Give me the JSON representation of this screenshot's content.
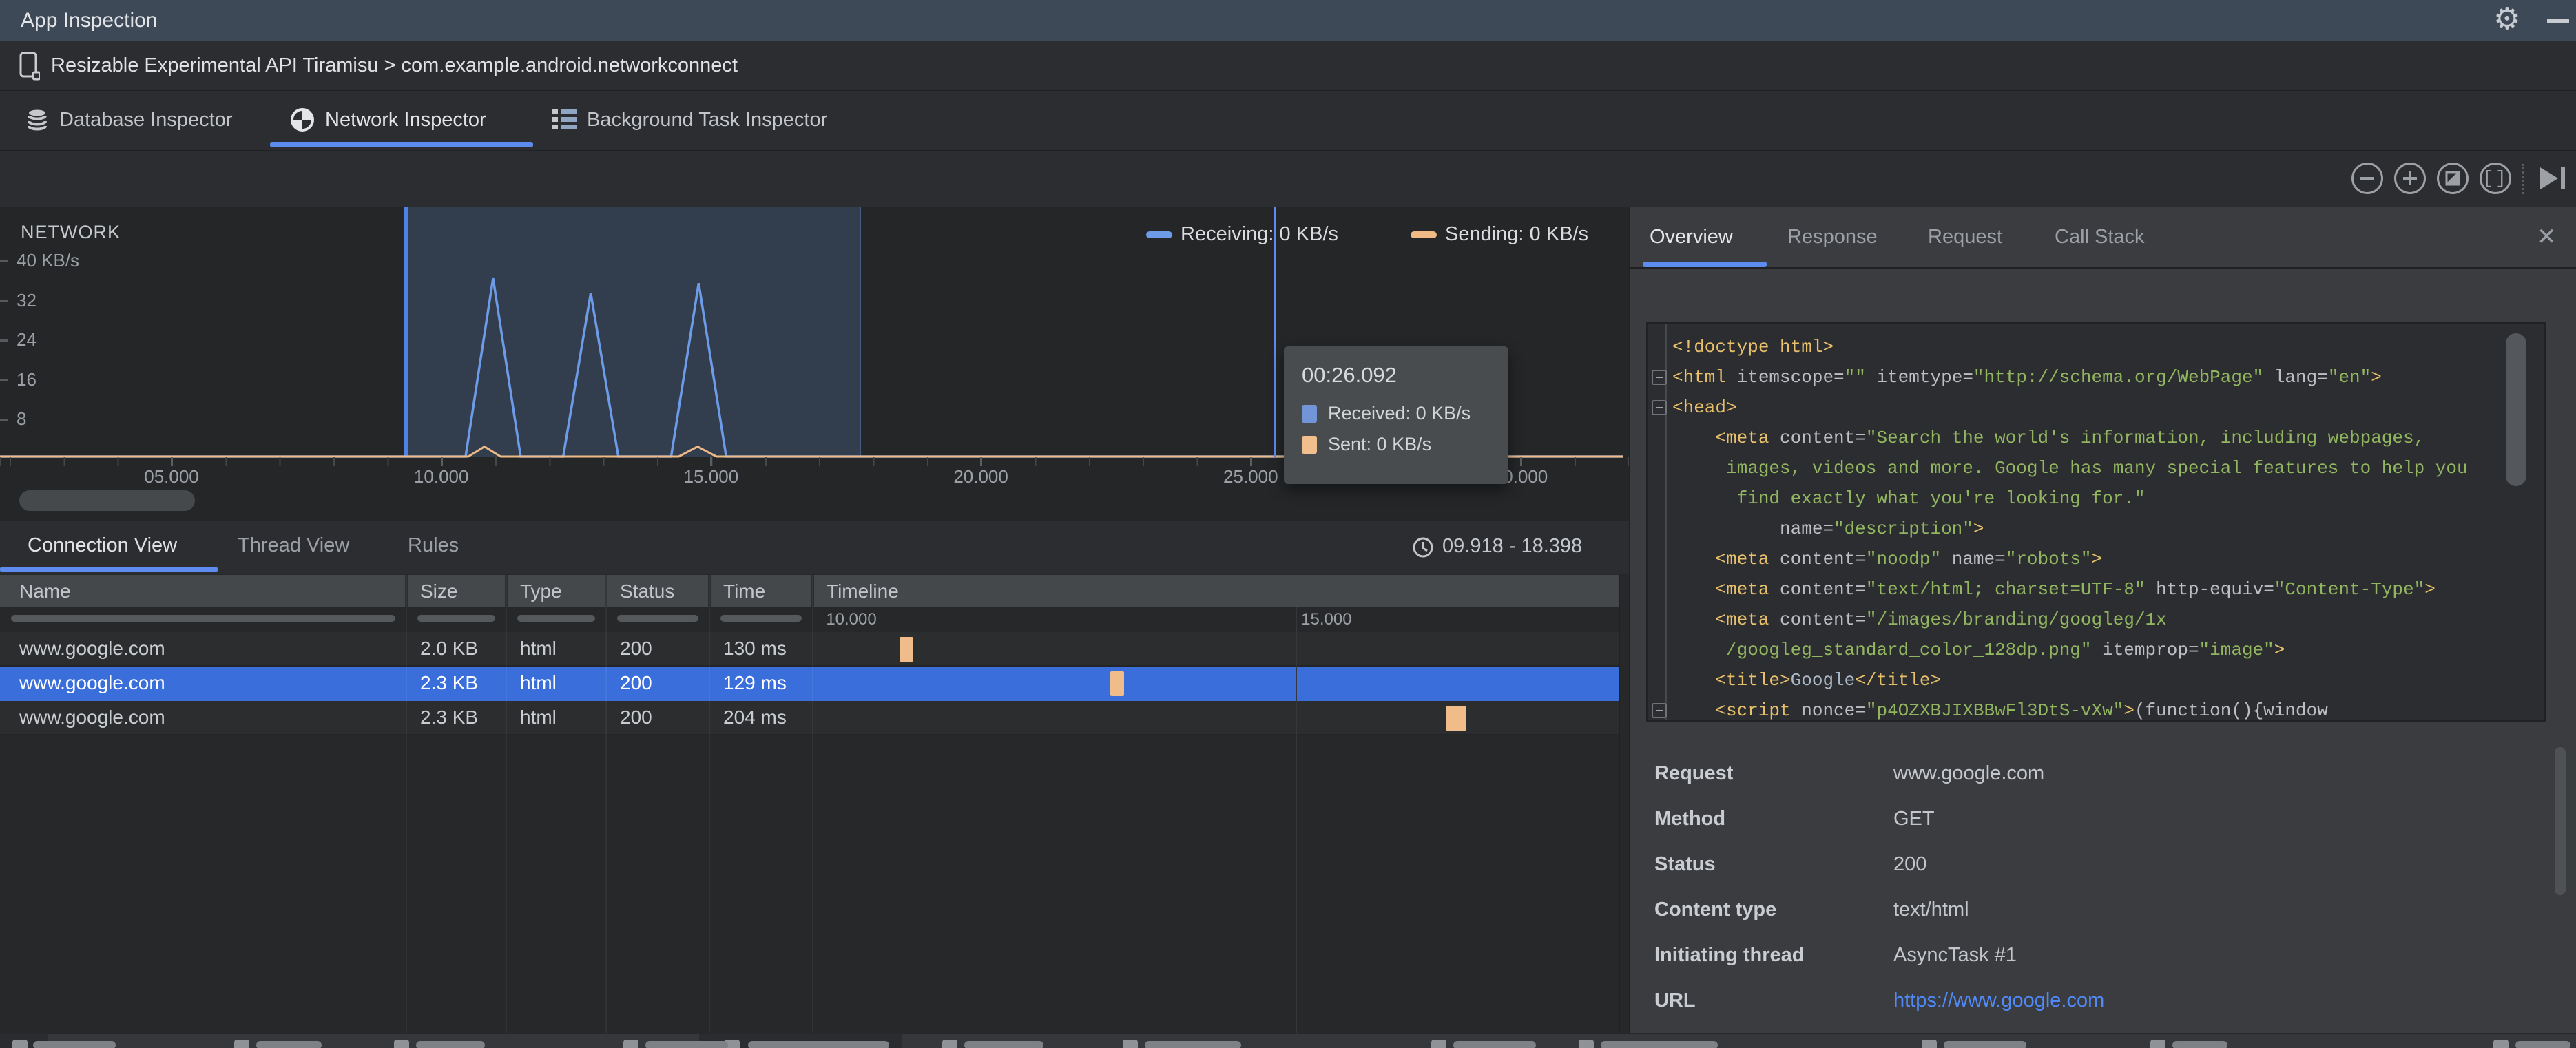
{
  "window": {
    "title": "App Inspection"
  },
  "process_selector": {
    "device_and_process": "Resizable Experimental API Tiramisu > com.example.android.networkconnect"
  },
  "inspector_tabs": [
    {
      "label": "Database Inspector",
      "icon": "database-icon",
      "selected": false
    },
    {
      "label": "Network Inspector",
      "icon": "globe-icon",
      "selected": true
    },
    {
      "label": "Background Task Inspector",
      "icon": "task-list-icon",
      "selected": false
    }
  ],
  "chart_toolbar": {
    "buttons": [
      "zoom-out",
      "zoom-in",
      "reset-zoom",
      "zoom-to-selection",
      "go-live"
    ]
  },
  "network": {
    "title": "NETWORK",
    "legend": {
      "receiving": "Receiving: 0 KB/s",
      "sending": "Sending: 0 KB/s"
    },
    "y_ticks": [
      "40 KB/s",
      "32",
      "24",
      "16",
      "8"
    ],
    "x_ticks": [
      "05.000",
      "10.000",
      "15.000",
      "20.000",
      "25.000",
      "30.000"
    ],
    "tooltip": {
      "time": "00:26.092",
      "received": "Received: 0 KB/s",
      "sent": "Sent: 0 KB/s"
    },
    "colors": {
      "receiving": "#6D9BE8",
      "sending": "#EFBA85",
      "selection_border": "#4E82E4",
      "hover_line": "#5E8BF0"
    }
  },
  "chart_data": {
    "type": "line",
    "title": "NETWORK",
    "ylabel": "KB/s",
    "ylim": [
      0,
      45
    ],
    "xlim_seconds": [
      1.8,
      31.9
    ],
    "x_tick_seconds": [
      5,
      10,
      15,
      20,
      25,
      30
    ],
    "selection_seconds": [
      9.918,
      18.398
    ],
    "hover_time_seconds": 26.092,
    "series": [
      {
        "name": "Receiving",
        "unit": "KB/s",
        "points": [
          [
            1.8,
            0
          ],
          [
            10.45,
            0
          ],
          [
            10.96,
            36
          ],
          [
            11.47,
            0
          ],
          [
            12.26,
            0
          ],
          [
            12.77,
            33
          ],
          [
            13.28,
            0
          ],
          [
            14.26,
            0
          ],
          [
            14.77,
            35
          ],
          [
            15.28,
            0
          ],
          [
            31.9,
            0
          ]
        ]
      },
      {
        "name": "Sending",
        "unit": "KB/s",
        "points": [
          [
            1.8,
            0
          ],
          [
            10.5,
            0
          ],
          [
            10.8,
            2
          ],
          [
            11.1,
            0
          ],
          [
            14.4,
            0
          ],
          [
            14.75,
            2
          ],
          [
            15.1,
            0
          ],
          [
            31.9,
            0
          ]
        ]
      }
    ],
    "legend_position": "top-right",
    "grid": false
  },
  "connections": {
    "tabs": [
      {
        "label": "Connection View",
        "selected": true
      },
      {
        "label": "Thread View",
        "selected": false
      },
      {
        "label": "Rules",
        "selected": false
      }
    ],
    "time_range": "09.918 - 18.398",
    "columns": [
      "Name",
      "Size",
      "Type",
      "Status",
      "Time",
      "Timeline"
    ],
    "timeline_axis_ticks": [
      {
        "label": "10.000",
        "t": 10
      },
      {
        "label": "15.000",
        "t": 15
      }
    ],
    "timeline_window_seconds": [
      9.918,
      18.398
    ],
    "rows": [
      {
        "name": "www.google.com",
        "size": "2.0 KB",
        "type": "html",
        "status": "200",
        "time": "130 ms",
        "start_s": 10.83,
        "duration_ms": 130,
        "selected": false
      },
      {
        "name": "www.google.com",
        "size": "2.3 KB",
        "type": "html",
        "status": "200",
        "time": "129 ms",
        "start_s": 13.05,
        "duration_ms": 129,
        "selected": true
      },
      {
        "name": "www.google.com",
        "size": "2.3 KB",
        "type": "html",
        "status": "200",
        "time": "204 ms",
        "start_s": 16.58,
        "duration_ms": 204,
        "selected": false
      }
    ]
  },
  "details": {
    "tabs": [
      {
        "label": "Overview",
        "selected": true
      },
      {
        "label": "Response",
        "selected": false
      },
      {
        "label": "Request",
        "selected": false
      },
      {
        "label": "Call Stack",
        "selected": false
      }
    ],
    "code_lines": [
      [
        [
          "g",
          "<!doctype html>"
        ]
      ],
      [
        [
          "g",
          "<html"
        ],
        [
          "a",
          " itemscope"
        ],
        [
          "p",
          "="
        ],
        [
          "v",
          "\"\""
        ],
        [
          "a",
          " itemtype"
        ],
        [
          "p",
          "="
        ],
        [
          "v",
          "\"http://schema.org/WebPage\""
        ],
        [
          "a",
          " lang"
        ],
        [
          "p",
          "="
        ],
        [
          "v",
          "\"en\""
        ],
        [
          "g",
          ">"
        ]
      ],
      [
        [
          "g",
          "<head>"
        ]
      ],
      [
        [
          "g",
          "    <meta"
        ],
        [
          "a",
          " content"
        ],
        [
          "p",
          "="
        ],
        [
          "v",
          "\"Search the world's information, including webpages,"
        ]
      ],
      [
        [
          "v",
          "     images, videos and more. Google has many special features to help you"
        ]
      ],
      [
        [
          "v",
          "      find exactly what you're looking for.\""
        ]
      ],
      [
        [
          "a",
          "          name"
        ],
        [
          "p",
          "="
        ],
        [
          "v",
          "\"description\""
        ],
        [
          "g",
          ">"
        ]
      ],
      [
        [
          "g",
          "    <meta"
        ],
        [
          "a",
          " content"
        ],
        [
          "p",
          "="
        ],
        [
          "v",
          "\"noodp\""
        ],
        [
          "a",
          " name"
        ],
        [
          "p",
          "="
        ],
        [
          "v",
          "\"robots\""
        ],
        [
          "g",
          ">"
        ]
      ],
      [
        [
          "g",
          "    <meta"
        ],
        [
          "a",
          " content"
        ],
        [
          "p",
          "="
        ],
        [
          "v",
          "\"text/html; charset=UTF-8\""
        ],
        [
          "a",
          " http-equiv"
        ],
        [
          "p",
          "="
        ],
        [
          "v",
          "\"Content-Type\""
        ],
        [
          "g",
          ">"
        ]
      ],
      [
        [
          "g",
          "    <meta"
        ],
        [
          "a",
          " content"
        ],
        [
          "p",
          "="
        ],
        [
          "v",
          "\"/images/branding/googleg/1x"
        ]
      ],
      [
        [
          "v",
          "     /googleg_standard_color_128dp.png\""
        ],
        [
          "a",
          " itemprop"
        ],
        [
          "p",
          "="
        ],
        [
          "v",
          "\"image\""
        ],
        [
          "g",
          ">"
        ]
      ],
      [
        [
          "g",
          "    <title>"
        ],
        [
          "t",
          "Google"
        ],
        [
          "g",
          "</title>"
        ]
      ],
      [
        [
          "g",
          "    <script"
        ],
        [
          "a",
          " nonce"
        ],
        [
          "p",
          "="
        ],
        [
          "v",
          "\"p4OZXBJIXBBwFl3DtS-vXw\""
        ],
        [
          "g",
          ">"
        ],
        [
          "p",
          "(function(){window"
        ]
      ]
    ],
    "fields": [
      {
        "label": "Request",
        "value": "www.google.com",
        "link": false
      },
      {
        "label": "Method",
        "value": "GET",
        "link": false
      },
      {
        "label": "Status",
        "value": "200",
        "link": false
      },
      {
        "label": "Content type",
        "value": "text/html",
        "link": false
      },
      {
        "label": "Initiating thread",
        "value": "AsyncTask #1",
        "link": false
      },
      {
        "label": "URL",
        "value": "https://www.google.com",
        "link": true
      }
    ]
  }
}
